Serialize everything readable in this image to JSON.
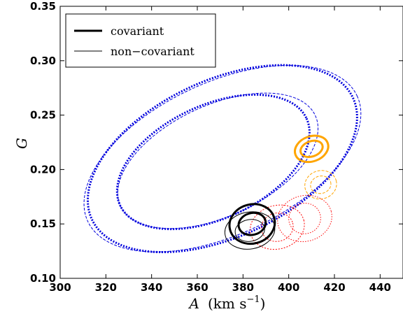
{
  "chart_data": {
    "type": "contour",
    "xlabel": "A",
    "xlabel_unit": "(km s",
    "xlabel_exp": "−1",
    "xlabel_close": ")",
    "ylabel": "G",
    "xlim": [
      300,
      450
    ],
    "ylim": [
      0.1,
      0.35
    ],
    "xticks": [
      300,
      320,
      340,
      360,
      380,
      400,
      420,
      440
    ],
    "xtick_labels": [
      "300",
      "320",
      "340",
      "360",
      "380",
      "400",
      "420",
      "440"
    ],
    "yticks": [
      0.1,
      0.15,
      0.2,
      0.25,
      0.3,
      0.35
    ],
    "ytick_labels": [
      "0.10",
      "0.15",
      "0.20",
      "0.25",
      "0.30",
      "0.35"
    ],
    "grid": false,
    "legend_position": "top-left",
    "legend": [
      {
        "label": "covariant",
        "style": "thick"
      },
      {
        "label": "non−covariant",
        "style": "thin"
      }
    ],
    "series": [
      {
        "color": "#0000dd",
        "style": "dotted",
        "covariant": true,
        "contours": [
          {
            "cx": 371,
            "cy": 0.21,
            "rx": 63,
            "ry": 0.072,
            "angle": 25
          },
          {
            "cx": 367,
            "cy": 0.207,
            "rx": 45,
            "ry": 0.052,
            "angle": 25
          }
        ]
      },
      {
        "color": "#0000dd",
        "style": "dashed",
        "covariant": false,
        "contours": [
          {
            "cx": 371,
            "cy": 0.21,
            "rx": 65,
            "ry": 0.07,
            "angle": 25
          },
          {
            "cx": 369,
            "cy": 0.208,
            "rx": 47,
            "ry": 0.051,
            "angle": 25
          }
        ]
      },
      {
        "color": "#ffa500",
        "style": "solid",
        "covariant": true,
        "contours": [
          {
            "cx": 410,
            "cy": 0.219,
            "rx": 7.5,
            "ry": 0.0115,
            "angle": 20
          },
          {
            "cx": 410,
            "cy": 0.219,
            "rx": 5,
            "ry": 0.007,
            "angle": 20
          }
        ]
      },
      {
        "color": "#ffa500",
        "style": "dashed",
        "covariant": false,
        "contours": [
          {
            "cx": 414,
            "cy": 0.186,
            "rx": 7,
            "ry": 0.013,
            "angle": 15
          },
          {
            "cx": 414,
            "cy": 0.186,
            "rx": 4.5,
            "ry": 0.008,
            "angle": 15
          }
        ]
      },
      {
        "color": "#ff0000",
        "style": "dotted",
        "covariant": true,
        "contours": [
          {
            "cx": 395,
            "cy": 0.147,
            "rx": 12,
            "ry": 0.02,
            "angle": 15
          },
          {
            "cx": 395,
            "cy": 0.147,
            "rx": 7,
            "ry": 0.013,
            "angle": 15
          }
        ]
      },
      {
        "color": "#ff0000",
        "style": "dotted",
        "covariant": false,
        "contours": [
          {
            "cx": 407,
            "cy": 0.155,
            "rx": 12,
            "ry": 0.021,
            "angle": 15
          },
          {
            "cx": 407,
            "cy": 0.155,
            "rx": 7,
            "ry": 0.014,
            "angle": 15
          }
        ]
      },
      {
        "color": "#000000",
        "style": "solid",
        "covariant": true,
        "contours": [
          {
            "cx": 384,
            "cy": 0.15,
            "rx": 10,
            "ry": 0.018,
            "angle": 15
          },
          {
            "cx": 384,
            "cy": 0.15,
            "rx": 6,
            "ry": 0.01,
            "angle": 15
          }
        ]
      },
      {
        "color": "#000000",
        "style": "solid",
        "covariant": false,
        "contours": [
          {
            "cx": 383,
            "cy": 0.144,
            "rx": 11,
            "ry": 0.017,
            "angle": 10
          },
          {
            "cx": 383,
            "cy": 0.144,
            "rx": 6.5,
            "ry": 0.01,
            "angle": 10
          }
        ]
      }
    ]
  }
}
